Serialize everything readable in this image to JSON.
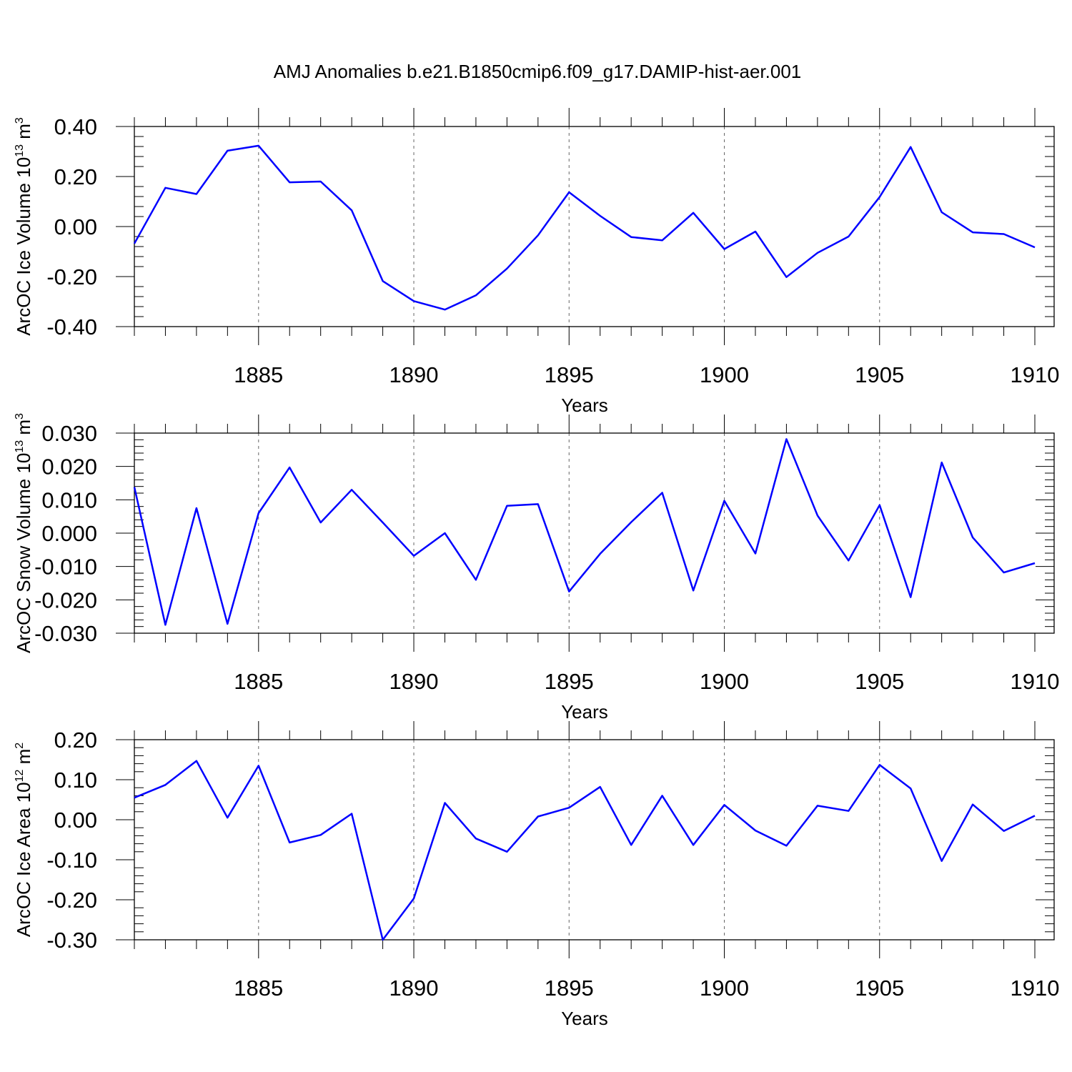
{
  "figure_title": "AMJ Anomalies b.e21.B1850cmip6.f09_g17.DAMIP-hist-aer.001",
  "line_color": "#0000ff",
  "chart_data": [
    {
      "type": "line",
      "title": "AMJ Anomalies b.e21.B1850cmip6.f09_g17.DAMIP-hist-aer.001",
      "xlabel": "Years",
      "ylabel": "ArcOC Ice Volume 10",
      "ylabel_sup": "13",
      "ylabel_unit": "m",
      "ylabel_unit_sup": "3",
      "xlim": [
        1881,
        1910
      ],
      "ylim": [
        -0.4,
        0.4
      ],
      "grid": true,
      "x_ticks": [
        1885,
        1890,
        1895,
        1900,
        1905,
        1910
      ],
      "x_tick_labels": [
        "1885",
        "1890",
        "1895",
        "1900",
        "1905",
        "1910"
      ],
      "y_ticks": [
        -0.4,
        -0.2,
        0.0,
        0.2,
        0.4
      ],
      "y_tick_labels": [
        "-0.40",
        "-0.20",
        "0.00",
        "0.20",
        "0.40"
      ],
      "x": [
        1881,
        1882,
        1883,
        1884,
        1885,
        1886,
        1887,
        1888,
        1889,
        1890,
        1891,
        1892,
        1893,
        1894,
        1895,
        1896,
        1897,
        1898,
        1899,
        1900,
        1901,
        1902,
        1903,
        1904,
        1905,
        1906,
        1907,
        1908,
        1909,
        1910
      ],
      "series": [
        {
          "name": "ArcOC Ice Volume",
          "values": [
            -0.068,
            0.155,
            0.13,
            0.303,
            0.323,
            0.177,
            0.18,
            0.065,
            -0.218,
            -0.298,
            -0.332,
            -0.275,
            -0.168,
            -0.035,
            0.137,
            0.043,
            -0.042,
            -0.055,
            0.055,
            -0.09,
            -0.02,
            -0.202,
            -0.105,
            -0.04,
            0.118,
            0.318,
            0.057,
            -0.023,
            -0.03,
            -0.083
          ]
        }
      ]
    },
    {
      "type": "line",
      "xlabel": "Years",
      "ylabel": "ArcOC Snow Volume 10",
      "ylabel_sup": "13",
      "ylabel_unit": "m",
      "ylabel_unit_sup": "3",
      "xlim": [
        1881,
        1910
      ],
      "ylim": [
        -0.03,
        0.03
      ],
      "grid": true,
      "x_ticks": [
        1885,
        1890,
        1895,
        1900,
        1905,
        1910
      ],
      "x_tick_labels": [
        "1885",
        "1890",
        "1895",
        "1900",
        "1905",
        "1910"
      ],
      "y_ticks": [
        -0.03,
        -0.02,
        -0.01,
        0.0,
        0.01,
        0.02,
        0.03
      ],
      "y_tick_labels": [
        "-0.030",
        "-0.020",
        "-0.010",
        "0.000",
        "0.010",
        "0.020",
        "0.030"
      ],
      "x": [
        1881,
        1882,
        1883,
        1884,
        1885,
        1886,
        1887,
        1888,
        1889,
        1890,
        1891,
        1892,
        1893,
        1894,
        1895,
        1896,
        1897,
        1898,
        1899,
        1900,
        1901,
        1902,
        1903,
        1904,
        1905,
        1906,
        1907,
        1908,
        1909,
        1910
      ],
      "series": [
        {
          "name": "ArcOC Snow Volume",
          "values": [
            0.0138,
            -0.0275,
            0.0075,
            -0.0272,
            0.006,
            0.0197,
            0.0032,
            0.013,
            0.0032,
            -0.0068,
            0.0,
            -0.014,
            0.0082,
            0.0087,
            -0.0175,
            -0.0062,
            0.0033,
            0.0121,
            -0.0172,
            0.0097,
            -0.0061,
            0.0282,
            0.0053,
            -0.0082,
            0.0084,
            -0.0192,
            0.0212,
            -0.0013,
            -0.0118,
            -0.009
          ]
        }
      ]
    },
    {
      "type": "line",
      "xlabel": "Years",
      "ylabel": "ArcOC Ice Area 10",
      "ylabel_sup": "12",
      "ylabel_unit": "m",
      "ylabel_unit_sup": "2",
      "xlim": [
        1881,
        1910
      ],
      "ylim": [
        -0.3,
        0.2
      ],
      "grid": true,
      "x_ticks": [
        1885,
        1890,
        1895,
        1900,
        1905,
        1910
      ],
      "x_tick_labels": [
        "1885",
        "1890",
        "1895",
        "1900",
        "1905",
        "1910"
      ],
      "y_ticks": [
        -0.3,
        -0.2,
        -0.1,
        0.0,
        0.1,
        0.2
      ],
      "y_tick_labels": [
        "-0.30",
        "-0.20",
        "-0.10",
        "0.00",
        "0.10",
        "0.20"
      ],
      "x": [
        1881,
        1882,
        1883,
        1884,
        1885,
        1886,
        1887,
        1888,
        1889,
        1890,
        1891,
        1892,
        1893,
        1894,
        1895,
        1896,
        1897,
        1898,
        1899,
        1900,
        1901,
        1902,
        1903,
        1904,
        1905,
        1906,
        1907,
        1908,
        1909,
        1910
      ],
      "series": [
        {
          "name": "ArcOC Ice Area",
          "values": [
            0.055,
            0.087,
            0.147,
            0.005,
            0.135,
            -0.057,
            -0.038,
            0.015,
            -0.3,
            -0.197,
            0.042,
            -0.047,
            -0.08,
            0.008,
            0.03,
            0.082,
            -0.063,
            0.06,
            -0.063,
            0.037,
            -0.027,
            -0.065,
            0.035,
            0.022,
            0.137,
            0.078,
            -0.103,
            0.038,
            -0.028,
            0.01
          ]
        }
      ]
    }
  ]
}
